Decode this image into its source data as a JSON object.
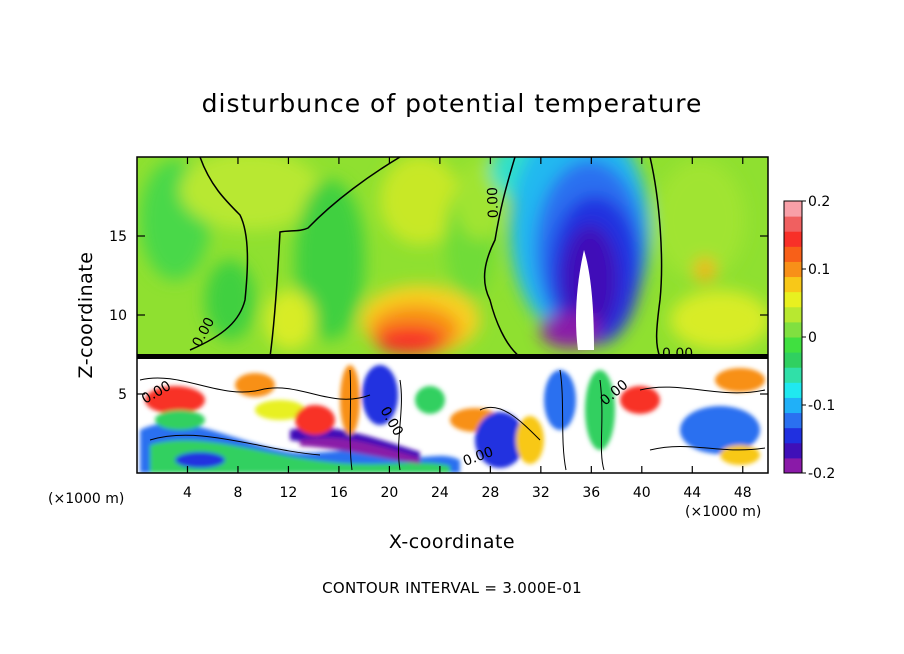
{
  "chart_data": {
    "type": "heatmap",
    "title": "disturbunce of potential temperature",
    "xlabel": "X-coordinate",
    "ylabel": "Z-coordinate",
    "x_units": "(×1000 m)",
    "x_units_right": "(×1000 m)",
    "x_ticks": [
      4,
      8,
      12,
      16,
      20,
      24,
      28,
      32,
      36,
      40,
      44,
      48
    ],
    "y_ticks": [
      5,
      10,
      15
    ],
    "xlim": [
      0,
      50
    ],
    "ylim": [
      0,
      20
    ],
    "colorbar": {
      "ticks": [
        "0.2",
        "0.1",
        "0",
        "-0.1",
        "-0.2"
      ],
      "tick_values": [
        0.2,
        0.1,
        0,
        -0.1,
        -0.2
      ],
      "range": [
        -0.2,
        0.2
      ],
      "colors": [
        "#8a1aa8",
        "#3f10b8",
        "#2030e0",
        "#2a70f0",
        "#20b0f8",
        "#20e8f0",
        "#30e0a8",
        "#30d060",
        "#40e040",
        "#80e040",
        "#b8e830",
        "#e8f020",
        "#f8c818",
        "#f89018",
        "#f86018",
        "#f83028",
        "#f06060",
        "#f8a0a8"
      ]
    },
    "contour_labels": [
      "0.00",
      "0.00",
      "0.00",
      "0.00",
      "0.00",
      "0.00",
      "0.00"
    ],
    "contour_interval_text": "CONTOUR INTERVAL = 3.000E-01",
    "grid": false
  }
}
